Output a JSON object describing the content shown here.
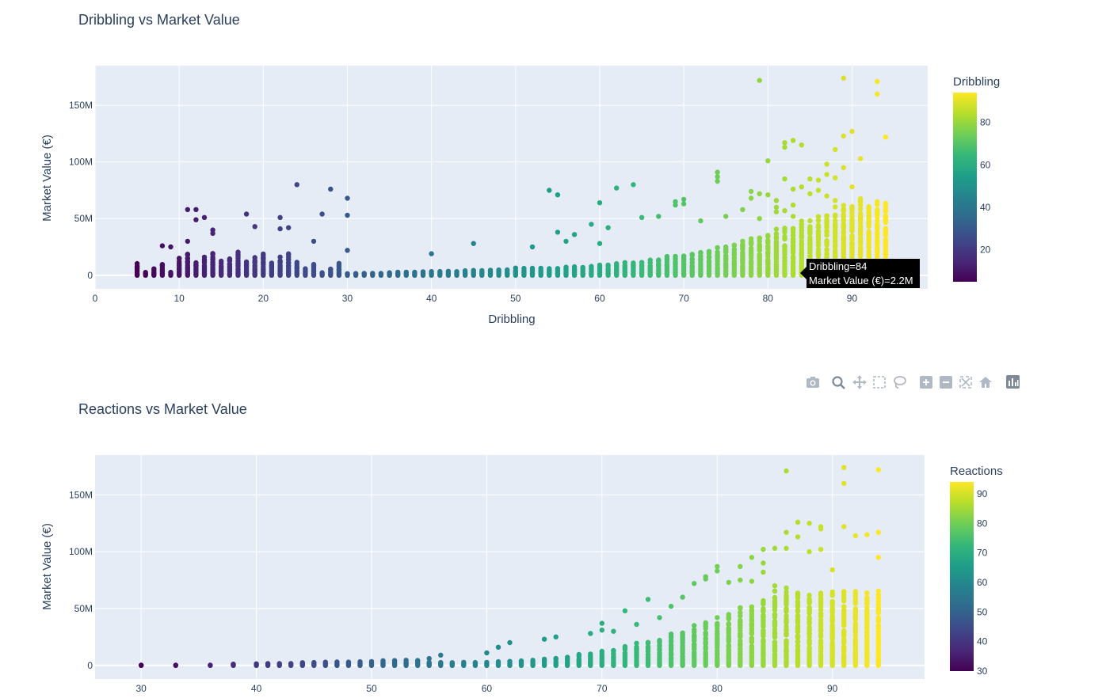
{
  "colors": {
    "plot_bg": "#e5ecf6",
    "grid": "#ffffff",
    "text": "#2a3f5f",
    "colorscale": [
      "#440154",
      "#482878",
      "#3e4989",
      "#31688e",
      "#26828e",
      "#1f9e89",
      "#35b779",
      "#6ece58",
      "#b5de2b",
      "#fde725"
    ]
  },
  "modebar": {
    "icons": [
      "camera-icon",
      "zoom-icon",
      "pan-icon",
      "box-select-icon",
      "lasso-icon",
      "zoom-in-icon",
      "zoom-out-icon",
      "autoscale-icon",
      "reset-icon",
      "plotly-logo-icon"
    ]
  },
  "tooltip": {
    "line1": "Dribbling=84",
    "line2": "Market Value (€)=2.2M",
    "x": 84,
    "y": 2.2
  },
  "chart_data": [
    {
      "type": "scatter",
      "title": "Dribbling vs Market Value",
      "xlabel": "Dribbling",
      "ylabel": "Market Value (€)",
      "xlim": [
        0,
        99
      ],
      "ylim": [
        -12,
        185
      ],
      "xticks": [
        0,
        10,
        20,
        30,
        40,
        50,
        60,
        70,
        80,
        90
      ],
      "yticks": [
        {
          "v": 0,
          "label": "0"
        },
        {
          "v": 50,
          "label": "50M"
        },
        {
          "v": 100,
          "label": "100M"
        },
        {
          "v": 150,
          "label": "150M"
        }
      ],
      "colorbar": {
        "title": "Dribbling",
        "range": [
          5,
          94
        ],
        "ticks": [
          20,
          40,
          60,
          80
        ]
      },
      "grid": true,
      "notable_points": [
        [
          79,
          172
        ],
        [
          89,
          174
        ],
        [
          93,
          171
        ],
        [
          93,
          160
        ],
        [
          94,
          122
        ],
        [
          90,
          127
        ],
        [
          89,
          123
        ],
        [
          91,
          103
        ],
        [
          88,
          111
        ],
        [
          84,
          115
        ],
        [
          82,
          117
        ],
        [
          83,
          119
        ],
        [
          82,
          113
        ],
        [
          80,
          101
        ],
        [
          87,
          98
        ],
        [
          87,
          89
        ],
        [
          86,
          84
        ],
        [
          88,
          86
        ],
        [
          85,
          85
        ],
        [
          89,
          95
        ],
        [
          90,
          78
        ],
        [
          91,
          65
        ],
        [
          91,
          66
        ],
        [
          93,
          42
        ],
        [
          93,
          29
        ],
        [
          90,
          24
        ],
        [
          91,
          20
        ],
        [
          90,
          27
        ],
        [
          74,
          91
        ],
        [
          74,
          87
        ],
        [
          74,
          83
        ],
        [
          69,
          65
        ],
        [
          69,
          62
        ],
        [
          70,
          67
        ],
        [
          70,
          63
        ],
        [
          54,
          75
        ],
        [
          55,
          71
        ],
        [
          62,
          77
        ],
        [
          64,
          80
        ],
        [
          60,
          64
        ],
        [
          24,
          80
        ],
        [
          28,
          76
        ],
        [
          30,
          68
        ],
        [
          30,
          53
        ],
        [
          27,
          54
        ],
        [
          11,
          58
        ],
        [
          12,
          58
        ],
        [
          12,
          49
        ],
        [
          13,
          51
        ],
        [
          18,
          54
        ],
        [
          22,
          51
        ],
        [
          19,
          43
        ],
        [
          23,
          42
        ],
        [
          22,
          41
        ],
        [
          14,
          40
        ],
        [
          14,
          37
        ],
        [
          8,
          26
        ],
        [
          9,
          25
        ],
        [
          11,
          30
        ],
        [
          26,
          30
        ],
        [
          30,
          22
        ],
        [
          45,
          28
        ],
        [
          40,
          19
        ],
        [
          78,
          74
        ],
        [
          79,
          72
        ],
        [
          80,
          71
        ],
        [
          78,
          68
        ],
        [
          81,
          66
        ],
        [
          81,
          60
        ],
        [
          82,
          57
        ],
        [
          83,
          62
        ],
        [
          82,
          85
        ],
        [
          83,
          76
        ],
        [
          85,
          72
        ],
        [
          84,
          78
        ],
        [
          86,
          75
        ],
        [
          87,
          70
        ],
        [
          88,
          66
        ],
        [
          89,
          58
        ],
        [
          88,
          52
        ],
        [
          87,
          48
        ],
        [
          84,
          45
        ],
        [
          83,
          52
        ],
        [
          81,
          56
        ],
        [
          79,
          50
        ],
        [
          77,
          58
        ],
        [
          75,
          52
        ],
        [
          72,
          48
        ],
        [
          67,
          52
        ],
        [
          65,
          51
        ],
        [
          59,
          45
        ],
        [
          61,
          42
        ],
        [
          57,
          36
        ],
        [
          55,
          38
        ],
        [
          52,
          25
        ],
        [
          56,
          30
        ],
        [
          60,
          28
        ]
      ]
    },
    {
      "type": "scatter",
      "title": "Reactions vs Market Value",
      "xlabel": "",
      "ylabel": "Market Value (€)",
      "xlim": [
        26,
        98
      ],
      "ylim": [
        -12,
        185
      ],
      "xticks": [
        30,
        40,
        50,
        60,
        70,
        80,
        90
      ],
      "yticks": [
        {
          "v": 0,
          "label": "0"
        },
        {
          "v": 50,
          "label": "50M"
        },
        {
          "v": 100,
          "label": "100M"
        },
        {
          "v": 150,
          "label": "150M"
        }
      ],
      "colorbar": {
        "title": "Reactions",
        "range": [
          30,
          94
        ],
        "ticks": [
          30,
          40,
          50,
          60,
          70,
          80,
          90
        ]
      },
      "grid": true,
      "notable_points": [
        [
          86,
          171
        ],
        [
          91,
          174
        ],
        [
          91,
          160
        ],
        [
          94,
          172
        ],
        [
          91,
          122
        ],
        [
          92,
          114
        ],
        [
          93,
          115
        ],
        [
          94,
          117
        ],
        [
          94,
          95
        ],
        [
          92,
          63
        ],
        [
          90,
          84
        ],
        [
          91,
          12
        ],
        [
          90,
          16
        ],
        [
          89,
          122
        ],
        [
          89,
          120
        ],
        [
          87,
          126
        ],
        [
          88,
          125
        ],
        [
          87,
          113
        ],
        [
          89,
          102
        ],
        [
          88,
          100
        ],
        [
          86,
          117
        ],
        [
          86,
          103
        ],
        [
          85,
          103
        ],
        [
          84,
          102
        ],
        [
          84,
          90
        ],
        [
          83,
          95
        ],
        [
          82,
          87
        ],
        [
          80,
          87
        ],
        [
          80,
          83
        ],
        [
          79,
          78
        ],
        [
          78,
          72
        ],
        [
          74,
          58
        ],
        [
          72,
          48
        ],
        [
          70,
          37
        ],
        [
          70,
          31
        ],
        [
          87,
          43
        ],
        [
          89,
          44
        ],
        [
          87,
          26
        ],
        [
          87,
          32
        ],
        [
          88,
          55
        ],
        [
          86,
          58
        ],
        [
          82,
          75
        ],
        [
          83,
          74
        ],
        [
          81,
          73
        ],
        [
          84,
          82
        ],
        [
          85,
          70
        ],
        [
          79,
          76
        ],
        [
          77,
          60
        ],
        [
          76,
          52
        ],
        [
          75,
          42
        ],
        [
          73,
          36
        ],
        [
          71,
          30
        ],
        [
          69,
          28
        ],
        [
          66,
          25
        ],
        [
          65,
          23
        ],
        [
          62,
          20
        ],
        [
          61,
          16
        ],
        [
          60,
          11
        ],
        [
          56,
          9
        ],
        [
          55,
          6
        ],
        [
          84,
          18
        ],
        [
          85,
          14
        ],
        [
          86,
          12
        ]
      ]
    }
  ]
}
